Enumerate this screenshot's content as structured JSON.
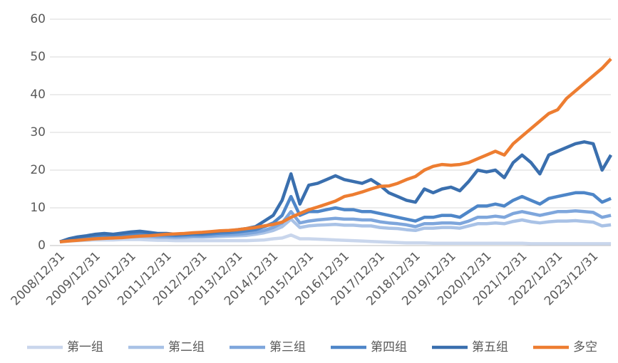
{
  "chart_data": {
    "type": "line",
    "x": [
      "2008/12/31",
      null,
      null,
      null,
      "2009/12/31",
      null,
      null,
      null,
      "2010/12/31",
      null,
      null,
      null,
      "2011/12/31",
      null,
      null,
      null,
      "2012/12/31",
      null,
      null,
      null,
      "2013/12/31",
      null,
      null,
      null,
      "2014/12/31",
      null,
      null,
      null,
      "2015/12/31",
      null,
      null,
      null,
      "2016/12/31",
      null,
      null,
      null,
      "2017/12/31",
      null,
      null,
      null,
      "2018/12/31",
      null,
      null,
      null,
      "2019/12/31",
      null,
      null,
      null,
      "2020/12/31",
      null,
      null,
      null,
      "2021/12/31",
      null,
      null,
      null,
      "2022/12/31",
      null,
      null,
      null,
      "2023/12/31",
      null,
      null
    ],
    "ylim": [
      0,
      60
    ],
    "yticks": [
      0,
      10,
      20,
      30,
      40,
      50,
      60
    ],
    "grid": true,
    "legend": "bottom",
    "series": [
      {
        "name": "第一组",
        "color": "#c9d6ec",
        "values": [
          1.0,
          1.2,
          1.3,
          1.4,
          1.5,
          1.5,
          1.5,
          1.6,
          1.6,
          1.6,
          1.5,
          1.4,
          1.4,
          1.3,
          1.3,
          1.3,
          1.3,
          1.3,
          1.3,
          1.3,
          1.3,
          1.3,
          1.4,
          1.5,
          1.8,
          2.0,
          2.8,
          1.8,
          1.8,
          1.7,
          1.6,
          1.5,
          1.4,
          1.3,
          1.2,
          1.1,
          1.0,
          0.9,
          0.8,
          0.7,
          0.7,
          0.7,
          0.6,
          0.6,
          0.6,
          0.6,
          0.6,
          0.6,
          0.6,
          0.6,
          0.6,
          0.6,
          0.6,
          0.5,
          0.5,
          0.5,
          0.5,
          0.5,
          0.5,
          0.5,
          0.5,
          0.5,
          0.5
        ]
      },
      {
        "name": "第二组",
        "color": "#a9c2e6",
        "values": [
          1.0,
          1.4,
          1.6,
          1.8,
          2.0,
          2.1,
          2.0,
          2.2,
          2.3,
          2.3,
          2.2,
          2.1,
          2.1,
          2.0,
          2.1,
          2.2,
          2.2,
          2.3,
          2.4,
          2.5,
          2.6,
          2.7,
          3.0,
          3.4,
          4.0,
          5,
          7,
          4.8,
          5.2,
          5.4,
          5.5,
          5.6,
          5.4,
          5.4,
          5.2,
          5.2,
          4.8,
          4.6,
          4.5,
          4.2,
          4.0,
          4.6,
          4.6,
          4.8,
          4.8,
          4.6,
          5.2,
          5.8,
          5.8,
          6,
          5.8,
          6.4,
          6.8,
          6.3,
          6,
          6.3,
          6.5,
          6.5,
          6.6,
          6.4,
          6.2,
          5.2,
          5.5
        ]
      },
      {
        "name": "第三组",
        "color": "#7ea6dc",
        "values": [
          1.0,
          1.5,
          1.8,
          2.0,
          2.3,
          2.4,
          2.3,
          2.5,
          2.7,
          2.7,
          2.6,
          2.4,
          2.4,
          2.3,
          2.4,
          2.5,
          2.5,
          2.6,
          2.8,
          2.9,
          3.0,
          3.2,
          3.5,
          4.0,
          4.8,
          6,
          9,
          6,
          6.5,
          6.8,
          7,
          7.2,
          7,
          7,
          6.8,
          6.8,
          6.3,
          6,
          5.8,
          5.5,
          5,
          5.8,
          5.8,
          6,
          6,
          5.8,
          6.5,
          7.5,
          7.5,
          7.8,
          7.5,
          8.5,
          9,
          8.5,
          8,
          8.5,
          9,
          9,
          9.2,
          9,
          8.8,
          7.5,
          8
        ]
      },
      {
        "name": "第四组",
        "color": "#4e86c8",
        "values": [
          1.0,
          1.6,
          2.0,
          2.3,
          2.6,
          2.8,
          2.7,
          2.9,
          3.1,
          3.2,
          3.0,
          2.8,
          2.8,
          2.7,
          2.8,
          2.9,
          2.9,
          3.1,
          3.3,
          3.4,
          3.6,
          3.9,
          4.2,
          5.0,
          6.0,
          8,
          13,
          8,
          9,
          9,
          9.5,
          10,
          9.5,
          9.5,
          9,
          9,
          8.5,
          8,
          7.5,
          7,
          6.5,
          7.5,
          7.5,
          8,
          8,
          7.5,
          9,
          10.5,
          10.5,
          11,
          10.5,
          12,
          13,
          12,
          11,
          12.5,
          13,
          13.5,
          14,
          14,
          13.5,
          11.5,
          12.5
        ]
      },
      {
        "name": "第五组",
        "color": "#3a6fae",
        "values": [
          1.0,
          1.8,
          2.3,
          2.6,
          3.0,
          3.2,
          3.0,
          3.3,
          3.6,
          3.8,
          3.5,
          3.2,
          3.2,
          3.0,
          3.1,
          3.3,
          3.3,
          3.5,
          3.8,
          3.9,
          4.2,
          4.5,
          5.0,
          6.5,
          8.0,
          12,
          19,
          11,
          16,
          16.5,
          17.5,
          18.5,
          17.5,
          17,
          16.5,
          17.5,
          16,
          14,
          13,
          12,
          11.5,
          15,
          14,
          15,
          15.5,
          14.5,
          17,
          20,
          19.5,
          20,
          18,
          22,
          24,
          22,
          19,
          24,
          25,
          26,
          27,
          27.5,
          27,
          20,
          24
        ]
      },
      {
        "name": "多空",
        "color": "#ed7d31",
        "values": [
          1.0,
          1.2,
          1.4,
          1.6,
          1.8,
          1.9,
          2.0,
          2.1,
          2.3,
          2.5,
          2.6,
          2.8,
          3.0,
          3.1,
          3.2,
          3.4,
          3.5,
          3.7,
          3.9,
          4.0,
          4.2,
          4.5,
          4.8,
          5.2,
          5.6,
          6.2,
          7.5,
          8.5,
          9.5,
          10.2,
          11,
          11.8,
          13,
          13.5,
          14.2,
          15,
          15.7,
          15.8,
          16.5,
          17.5,
          18.3,
          20,
          21,
          21.5,
          21.3,
          21.5,
          22,
          23,
          24,
          25,
          24,
          27,
          29,
          31,
          33,
          35,
          36,
          39,
          41,
          43,
          45,
          47,
          49.5
        ]
      }
    ]
  }
}
